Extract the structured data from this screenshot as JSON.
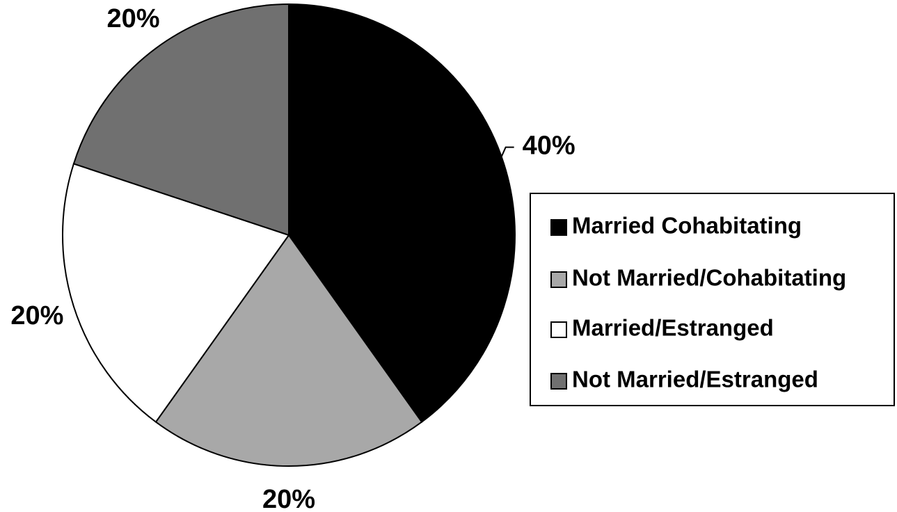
{
  "chart_data": {
    "type": "pie",
    "categories": [
      "Married Cohabitating",
      "Not Married/Cohabitating",
      "Married/Estranged",
      "Not Married/Estranged"
    ],
    "values": [
      40,
      20,
      20,
      20
    ],
    "value_labels": [
      "40%",
      "20%",
      "20%",
      "20%"
    ],
    "colors": [
      "#000000",
      "#a8a8a8",
      "#ffffff",
      "#707070"
    ],
    "legend": "right"
  }
}
